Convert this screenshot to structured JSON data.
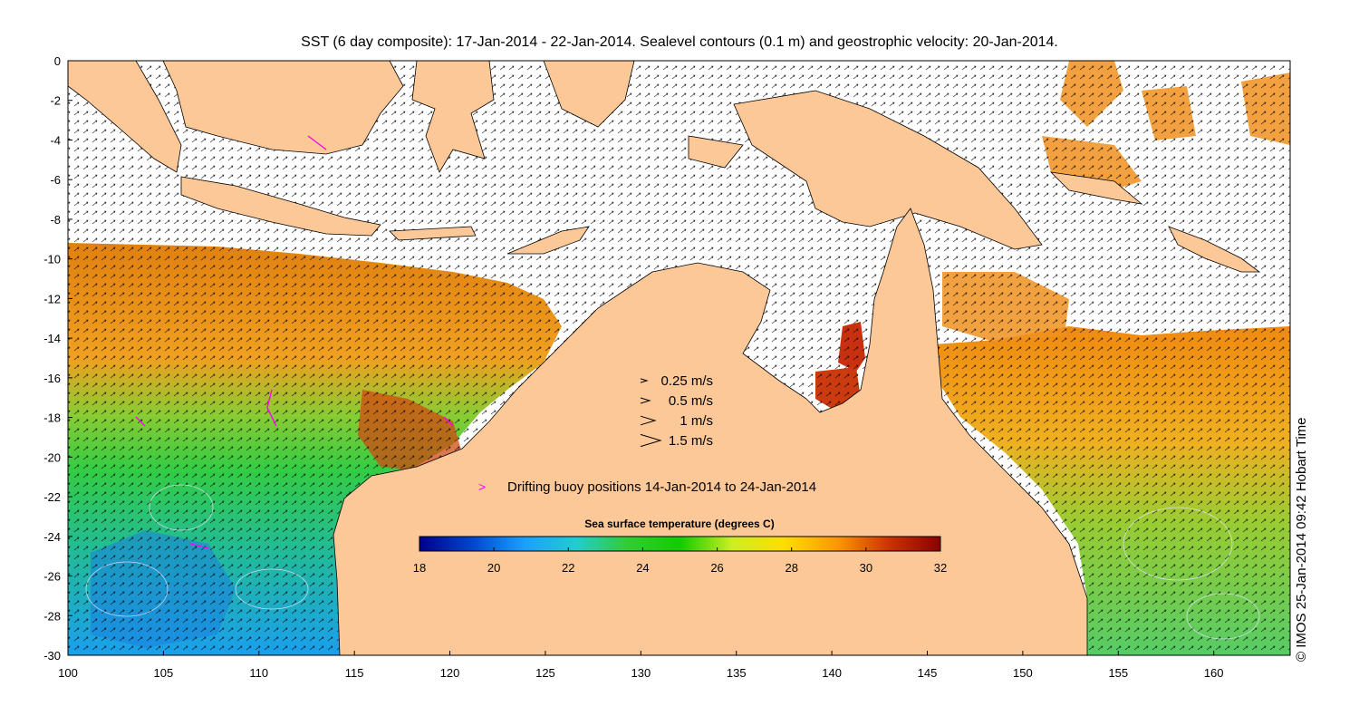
{
  "title": "SST (6 day composite): 17-Jan-2014 - 22-Jan-2014. Sealevel contours (0.1 m) and geostrophic velocity: 20-Jan-2014.",
  "copyright": "© IMOS 25-Jan-2014 09:42 Hobart Time",
  "axes": {
    "x_ticks": [
      "100",
      "105",
      "110",
      "115",
      "120",
      "125",
      "130",
      "135",
      "140",
      "145",
      "150",
      "155",
      "160"
    ],
    "y_ticks": [
      "0",
      "-2",
      "-4",
      "-6",
      "-8",
      "-10",
      "-12",
      "-14",
      "-16",
      "-18",
      "-20",
      "-22",
      "-24",
      "-26",
      "-28",
      "-30"
    ],
    "xlim": [
      100,
      164
    ],
    "ylim": [
      -30,
      0
    ]
  },
  "velocity_legend": [
    {
      "label": "0.25 m/s",
      "speed": 0.25
    },
    {
      "label": "0.5 m/s",
      "speed": 0.5
    },
    {
      "label": "1 m/s",
      "speed": 1
    },
    {
      "label": "1.5 m/s",
      "speed": 1.5
    }
  ],
  "buoy_legend": {
    "label": "Drifting buoy positions 14-Jan-2014 to 24-Jan-2014",
    "symbol": ">",
    "color": "#ff00ff"
  },
  "colorbar": {
    "label": "Sea surface temperature (degrees C)",
    "range": [
      18,
      32
    ],
    "ticks": [
      "18",
      "20",
      "22",
      "24",
      "26",
      "28",
      "30",
      "32"
    ],
    "colors": [
      "#00008b",
      "#0044cc",
      "#1a9fff",
      "#22ccd0",
      "#33cc33",
      "#11cc00",
      "#ccee22",
      "#ffdd00",
      "#ff9900",
      "#cc3300",
      "#8b0000"
    ]
  },
  "colors": {
    "land": "#fcc898",
    "sea_no_data": "#ffffff",
    "sst_warm": "#f08a10",
    "sst_hot": "#d03010",
    "sst_mid": "#33cc33",
    "sst_cool": "#22aadd"
  }
}
